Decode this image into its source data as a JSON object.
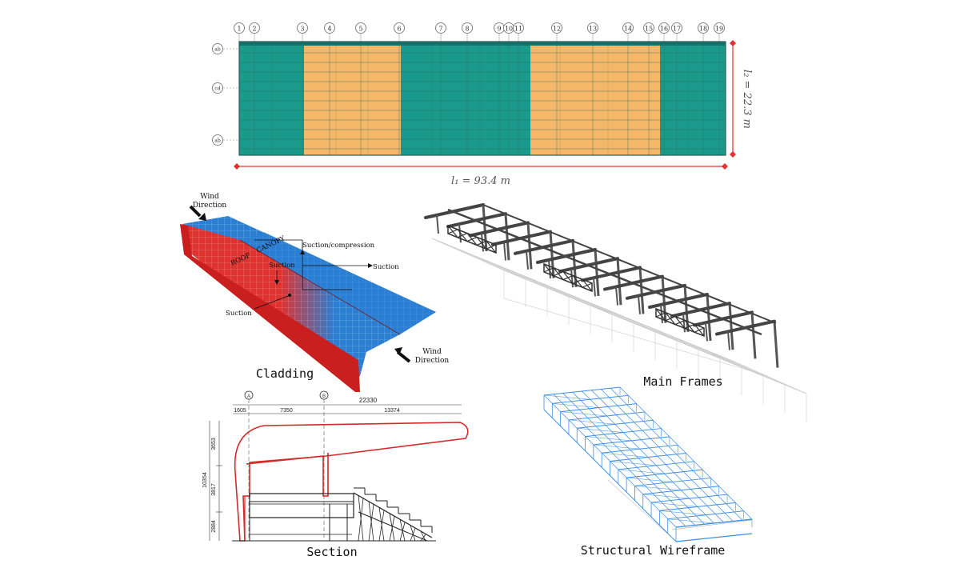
{
  "plan": {
    "grid_labels": [
      "1",
      "2",
      "3",
      "4",
      "5",
      "6",
      "7",
      "8",
      "9",
      "10",
      "11",
      "12",
      "13",
      "14",
      "15",
      "16",
      "17",
      "18",
      "19"
    ],
    "row_labels": [
      "ab",
      "cd",
      "ab"
    ],
    "width_dimension": "l₁ = 93.4 m",
    "depth_dimension": "l₂ = 22.3 m",
    "bands": [
      {
        "color": "#1a9a8a"
      },
      {
        "color": "#f5b868"
      },
      {
        "color": "#1a9a8a"
      },
      {
        "color": "#f5b868"
      },
      {
        "color": "#1a9a8a"
      }
    ]
  },
  "cladding": {
    "caption": "Cladding",
    "wind_top": [
      "Wind",
      "Direction"
    ],
    "wind_bottom": [
      "Wind",
      "Direction"
    ],
    "label_canopy": "CANOPY",
    "label_roof": "ROOF",
    "label_suction_compression": "Suction/compression",
    "label_suction": "Suction",
    "colors": {
      "windward": "#e0322e",
      "leeward": "#2a7fd4"
    }
  },
  "frames": {
    "caption": "Main Frames"
  },
  "section": {
    "caption": "Section",
    "grid_a": "A",
    "grid_b": "B",
    "dim_total": "22330",
    "dims_top": [
      "1605",
      "7350",
      "13374"
    ],
    "dims_left": [
      "3653",
      "3817",
      "2884"
    ],
    "dim_height": "10354"
  },
  "wireframe": {
    "caption": "Structural Wireframe",
    "color": "#3a8ee6"
  }
}
